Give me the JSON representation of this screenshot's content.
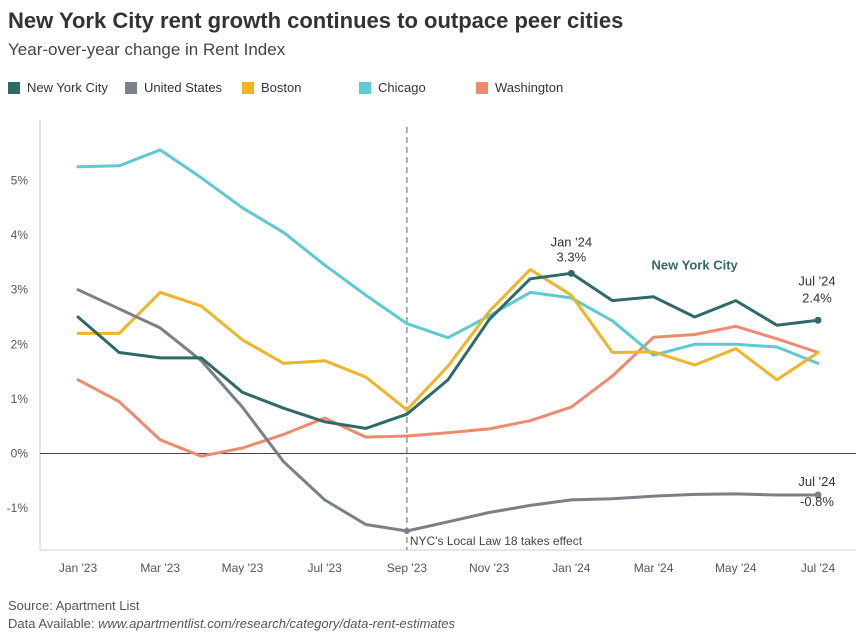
{
  "title": "New York City rent growth continues to outpace peer cities",
  "subtitle": "Year-over-year change in Rent Index",
  "colors": {
    "nyc": "#2e6a6a",
    "us": "#7b7f88",
    "boston": "#f0b429",
    "chicago": "#5ccad0",
    "washington": "#f08a6e"
  },
  "chart_data": {
    "type": "line",
    "x": [
      "Jan '23",
      "Feb '23",
      "Mar '23",
      "Apr '23",
      "May '23",
      "Jun '23",
      "Jul '23",
      "Aug '23",
      "Sep '23",
      "Oct '23",
      "Nov '23",
      "Dec '23",
      "Jan '24",
      "Feb '24",
      "Mar '24",
      "Apr '24",
      "May '24",
      "Jun '24",
      "Jul '24"
    ],
    "x_tick_labels": [
      "Jan '23",
      "Mar '23",
      "May '23",
      "Jul '23",
      "Sep '23",
      "Nov '23",
      "Jan '24",
      "Mar '24",
      "May '24",
      "Jul '24"
    ],
    "y_tick_labels": [
      "-1%",
      "0%",
      "1%",
      "2%",
      "3%",
      "4%",
      "5%"
    ],
    "y_ticks": [
      -1,
      0,
      1,
      2,
      3,
      4,
      5
    ],
    "ylim": [
      -1.8,
      5.9
    ],
    "grid": false,
    "legend_position": "top-left",
    "series": [
      {
        "name": "New York City",
        "color_key": "nyc",
        "width": 3,
        "values": [
          2.5,
          1.85,
          1.75,
          1.75,
          1.12,
          0.83,
          0.58,
          0.46,
          0.72,
          1.35,
          2.45,
          3.2,
          3.3,
          2.8,
          2.87,
          2.5,
          2.8,
          2.35,
          2.44
        ]
      },
      {
        "name": "United States",
        "color_key": "us",
        "width": 3,
        "values": [
          3.0,
          2.65,
          2.3,
          1.7,
          0.85,
          -0.15,
          -0.85,
          -1.3,
          -1.42,
          -1.25,
          -1.08,
          -0.95,
          -0.85,
          -0.83,
          -0.78,
          -0.75,
          -0.74,
          -0.76,
          -0.76
        ]
      },
      {
        "name": "Boston",
        "color_key": "boston",
        "width": 3,
        "values": [
          2.2,
          2.2,
          2.95,
          2.7,
          2.08,
          1.65,
          1.7,
          1.4,
          0.8,
          1.6,
          2.6,
          3.37,
          2.9,
          1.85,
          1.86,
          1.62,
          1.92,
          1.35,
          1.85
        ]
      },
      {
        "name": "Chicago",
        "color_key": "chicago",
        "width": 3,
        "values": [
          5.25,
          5.27,
          5.56,
          5.05,
          4.5,
          4.05,
          3.45,
          2.9,
          2.38,
          2.12,
          2.52,
          2.95,
          2.85,
          2.43,
          1.8,
          2.0,
          2.0,
          1.95,
          1.65
        ]
      },
      {
        "name": "Washington",
        "color_key": "washington",
        "width": 3,
        "values": [
          1.35,
          0.95,
          0.25,
          -0.05,
          0.1,
          0.35,
          0.65,
          0.3,
          0.32,
          0.38,
          0.45,
          0.6,
          0.85,
          1.42,
          2.13,
          2.18,
          2.33,
          2.1,
          1.85
        ]
      }
    ],
    "vline": {
      "x_index": 8,
      "label": "NYC's Local Law 18 takes effect"
    },
    "annotations": [
      {
        "id": "nyc_jan24",
        "x_index": 12,
        "series": 0,
        "line1": "Jan '24",
        "line2": "3.3%"
      },
      {
        "id": "nyc_jul24",
        "x_index": 18,
        "series": 0,
        "line1": "Jul '24",
        "line2": "2.4%"
      },
      {
        "id": "us_jul24",
        "x_index": 18,
        "series": 1,
        "line1": "Jul '24",
        "line2": "-0.8%"
      }
    ],
    "series_label": {
      "text": "New York City",
      "series": 0
    }
  },
  "legend": [
    {
      "label": "New York City",
      "color_key": "nyc"
    },
    {
      "label": "United States",
      "color_key": "us"
    },
    {
      "label": "Boston",
      "color_key": "boston"
    },
    {
      "label": "Chicago",
      "color_key": "chicago"
    },
    {
      "label": "Washington",
      "color_key": "washington"
    }
  ],
  "footer": {
    "source": "Source: Apartment List",
    "data_prefix": "Data Available: ",
    "data_url": "www.apartmentlist.com/research/category/data-rent-estimates"
  }
}
